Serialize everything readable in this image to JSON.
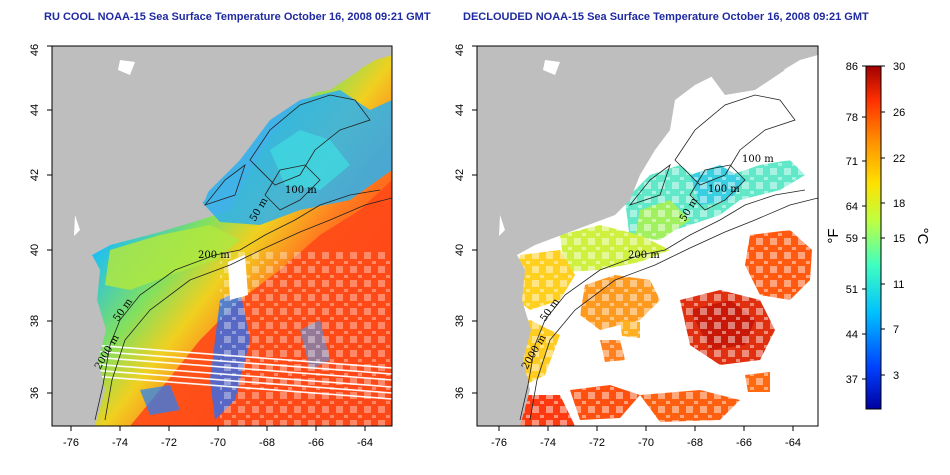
{
  "panels": [
    {
      "id": "left",
      "title": "RU COOL NOAA-15 Sea Surface Temperature October 16, 2008 09:21 GMT",
      "mode": "raw",
      "contour_labels": [
        "100 m",
        "50 m",
        "200 m",
        "50 m",
        "2000 m"
      ]
    },
    {
      "id": "right",
      "title": "DECLOUDED NOAA-15 Sea Surface Temperature October 16, 2008 09:21 GMT",
      "mode": "declouded",
      "contour_labels": [
        "100 m",
        "100 m",
        "50 m",
        "200 m",
        "50 m",
        "2000 m"
      ]
    }
  ],
  "axes": {
    "lon_ticks": [
      "-76",
      "-74",
      "-72",
      "-70",
      "-68",
      "-66",
      "-64"
    ],
    "lat_ticks": [
      "36",
      "38",
      "40",
      "42",
      "44",
      "46"
    ]
  },
  "colorbar": {
    "fahrenheit_unit": "°F",
    "celsius_unit": "°C",
    "fahrenheit_ticks": [
      "86",
      "78",
      "71",
      "64",
      "59",
      "51",
      "44",
      "37"
    ],
    "celsius_ticks": [
      "30",
      "26",
      "22",
      "18",
      "15",
      "11",
      "7",
      "3"
    ],
    "gradient_colors": [
      "#0000a0",
      "#0040ff",
      "#00c0ff",
      "#40ffc0",
      "#c0ff40",
      "#ffe000",
      "#ff9000",
      "#ff3000",
      "#a00000"
    ]
  },
  "colors": {
    "land": "#bebebe",
    "cloud": "#ffffff",
    "title": "#1f2aa0"
  }
}
